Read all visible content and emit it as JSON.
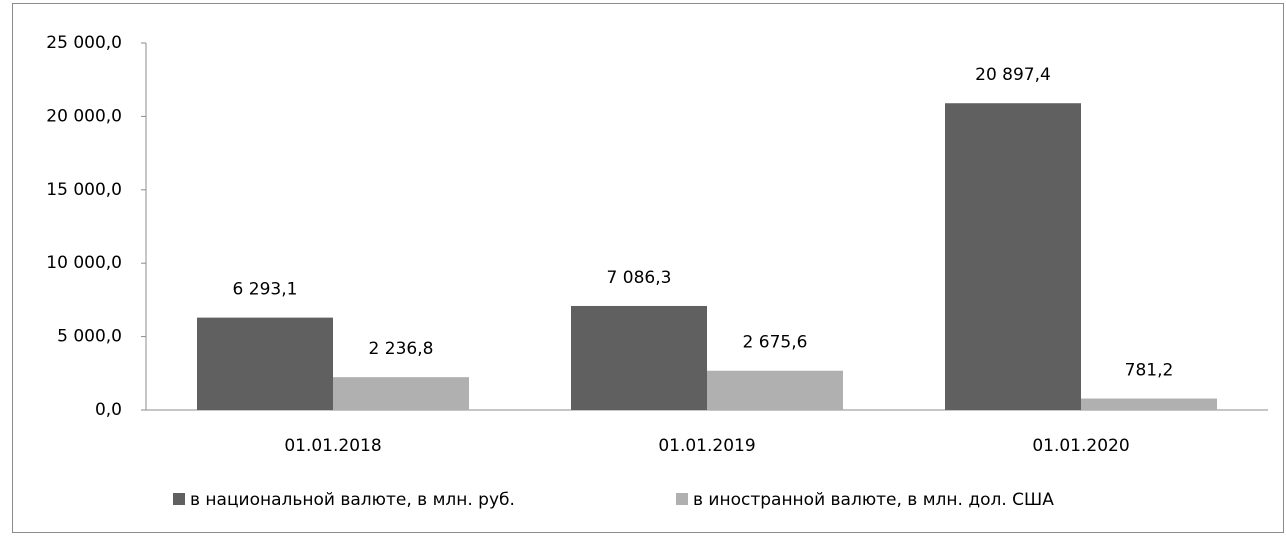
{
  "chart_data": {
    "type": "bar",
    "categories": [
      "01.01.2018",
      "01.01.2019",
      "01.01.2020"
    ],
    "series": [
      {
        "name": "в национальной валюте, в млн. руб.",
        "color": "#606060",
        "values": [
          6293.1,
          7086.3,
          20897.4
        ],
        "value_labels": [
          "6 293,1",
          "7 086,3",
          "20 897,4"
        ]
      },
      {
        "name": "в иностранной валюте, в млн. дол. США",
        "color": "#b0b0b0",
        "values": [
          2236.8,
          2675.6,
          781.2
        ],
        "value_labels": [
          "2 236,8",
          "2 675,6",
          "781,2"
        ]
      }
    ],
    "ylim": [
      0,
      25000
    ],
    "yticks": [
      {
        "value": 0,
        "label": "0,0"
      },
      {
        "value": 5000,
        "label": "5 000,0"
      },
      {
        "value": 10000,
        "label": "10 000,0"
      },
      {
        "value": 15000,
        "label": "15 000,0"
      },
      {
        "value": 20000,
        "label": "20 000,0"
      },
      {
        "value": 25000,
        "label": "25 000,0"
      }
    ],
    "grid": false,
    "legend": "bottom"
  }
}
